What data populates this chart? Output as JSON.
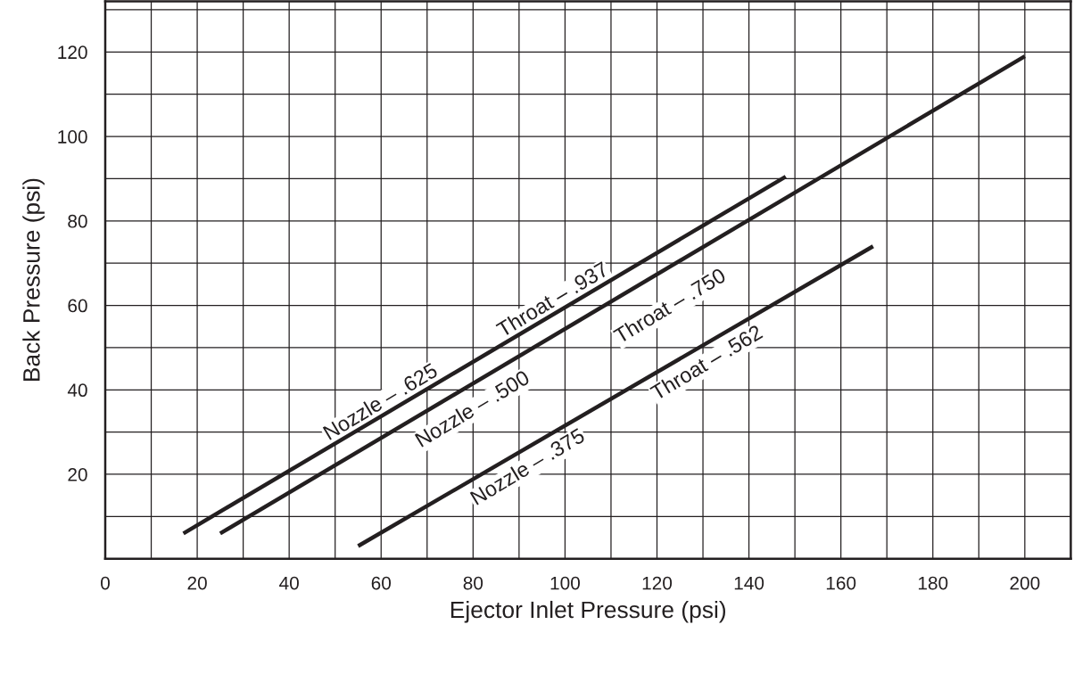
{
  "chart_data": {
    "type": "line",
    "xlabel": "Ejector Inlet Pressure (psi)",
    "ylabel": "Back Pressure (psi)",
    "xlim": [
      0,
      210
    ],
    "ylim": [
      0,
      132
    ],
    "xticks": [
      0,
      {
        "value": 10,
        "label": null
      },
      20,
      {
        "value": 30,
        "label": null
      },
      40,
      {
        "value": 50,
        "label": null
      },
      60,
      {
        "value": 70,
        "label": null
      },
      80,
      {
        "value": 90,
        "label": null
      },
      100,
      {
        "value": 110,
        "label": null
      },
      120,
      {
        "value": 130,
        "label": null
      },
      140,
      {
        "value": 150,
        "label": null
      },
      160,
      {
        "value": 170,
        "label": null
      },
      180,
      {
        "value": 190,
        "label": null
      },
      200
    ],
    "yticks": [
      {
        "value": 0,
        "label": null
      },
      {
        "value": 10,
        "label": null
      },
      20,
      {
        "value": 30,
        "label": null
      },
      40,
      {
        "value": 50,
        "label": null
      },
      60,
      {
        "value": 70,
        "label": null
      },
      80,
      {
        "value": 90,
        "label": null
      },
      100,
      {
        "value": 110,
        "label": null
      },
      120,
      {
        "value": 130,
        "label": null
      }
    ],
    "grid": true,
    "marker": "none",
    "line_style": "solid",
    "series": [
      {
        "color": "#231f20",
        "x": [
          17,
          148
        ],
        "values": [
          6,
          90.5
        ]
      },
      {
        "color": "#231f20",
        "x": [
          25,
          200
        ],
        "values": [
          6,
          119
        ]
      },
      {
        "color": "#231f20",
        "x": [
          55,
          167
        ],
        "values": [
          3,
          74
        ]
      }
    ],
    "annotations": [
      {
        "text": "Nozzle – .625",
        "x": 60,
        "y": 33.7
      },
      {
        "text": "Throat – .937",
        "x": 97.5,
        "y": 57.9
      },
      {
        "text": "Nozzle – .500",
        "x": 80,
        "y": 41.5
      },
      {
        "text": "Throat – .750",
        "x": 123,
        "y": 69.3
      },
      {
        "text": "Nozzle – .375",
        "x": 92,
        "y": 26.5
      },
      {
        "text": "Throat – .562",
        "x": 131,
        "y": 51.2
      }
    ]
  }
}
